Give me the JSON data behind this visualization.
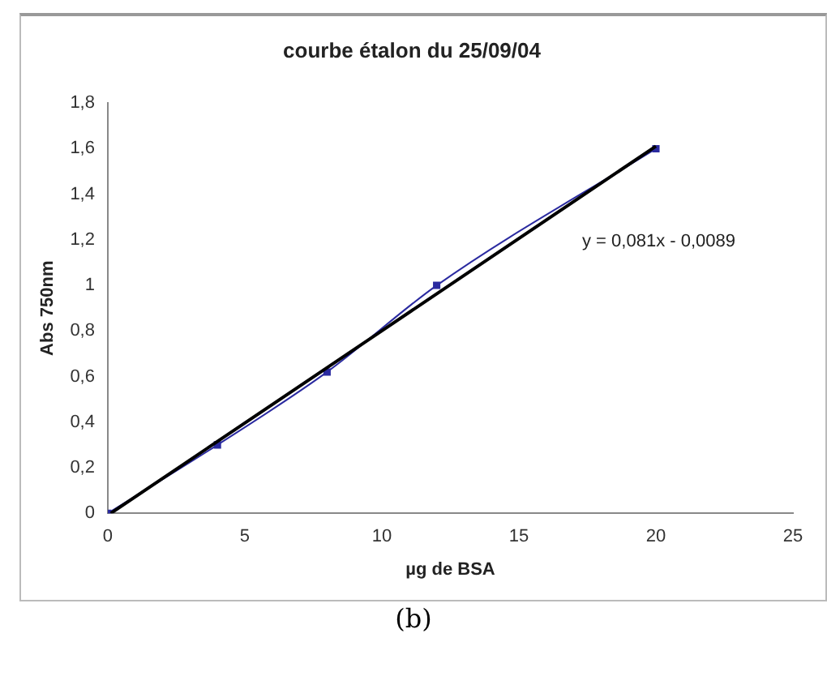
{
  "chart_data": {
    "type": "line",
    "title": "courbe étalon du 25/09/04",
    "xlabel": "µg de BSA",
    "ylabel": "Abs 750nm",
    "x": [
      0,
      4,
      8,
      12,
      20
    ],
    "series": [
      {
        "color": "#2a2aa0",
        "values": [
          0,
          0.3,
          0.62,
          1.0,
          1.6
        ],
        "marker": "square"
      },
      {
        "color": "#000000",
        "x": [
          0.11,
          20
        ],
        "values": [
          0,
          1.611
        ],
        "marker": "none"
      }
    ],
    "xlim": [
      0,
      25
    ],
    "xticks": [
      0,
      5,
      10,
      15,
      20,
      25
    ],
    "ylim": [
      0,
      1.8
    ],
    "yticks": [
      0,
      {
        "value": 0.2,
        "label": "0,2"
      },
      {
        "value": 0.4,
        "label": "0,4"
      },
      {
        "value": 0.6,
        "label": "0,6"
      },
      {
        "value": 0.8,
        "label": "0,8"
      },
      1,
      {
        "value": 1.2,
        "label": "1,2"
      },
      {
        "value": 1.4,
        "label": "1,4"
      },
      {
        "value": 1.6,
        "label": "1,6"
      },
      {
        "value": 1.8,
        "label": "1,8"
      }
    ],
    "grid": false,
    "legend": false,
    "annotations": [
      "y = 0,081x - 0,0089",
      "(b)"
    ]
  }
}
